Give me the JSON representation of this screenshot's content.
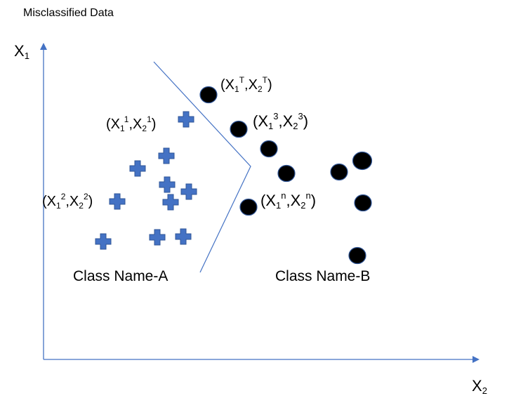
{
  "title": "Misclassified Data",
  "axes": {
    "y_label": "X",
    "y_label_sub": "1",
    "x_label": "X",
    "x_label_sub": "2"
  },
  "classes": [
    {
      "name": "Class Name-A",
      "marker": "blue-cross",
      "color": "#4472c4"
    },
    {
      "name": "Class Name-B",
      "marker": "black-circle",
      "color": "#000000"
    }
  ],
  "colors": {
    "axis": "#4472c4",
    "boundary": "#4472c4",
    "class_a_fill": "#4472c4",
    "class_b_fill": "#000000",
    "marker_edge": "#2f5597"
  },
  "point_labels": [
    {
      "prefix": "(X",
      "s1": "1",
      "p1": "T",
      "mid": ",X",
      "s2": "2",
      "p2": "T",
      "suffix": ")"
    },
    {
      "prefix": "(X",
      "s1": "1",
      "p1": "1",
      "mid": ",X",
      "s2": "2",
      "p2": "1",
      "suffix": ")"
    },
    {
      "prefix": "(X",
      "s1": "1",
      "p1": "3",
      "mid": ",X",
      "s2": "2",
      "p2": "3",
      "suffix": ")"
    },
    {
      "prefix": "(X",
      "s1": "1",
      "p1": "2",
      "mid": ",X",
      "s2": "2",
      "p2": "2",
      "suffix": ")"
    },
    {
      "prefix": "(X",
      "s1": "1",
      "p1": "n",
      "mid": ",X",
      "s2": "2",
      "p2": "n",
      "suffix": ")"
    }
  ]
}
